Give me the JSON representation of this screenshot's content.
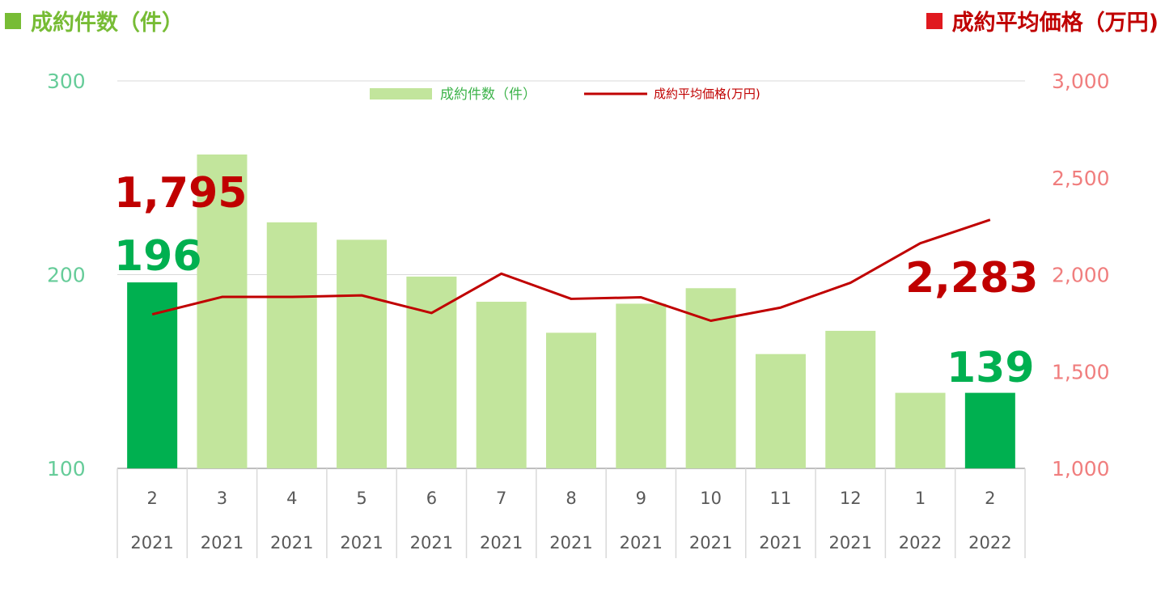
{
  "header": {
    "left_title": "成約件数（件）",
    "right_title": "成約平均価格（万円)"
  },
  "legend": {
    "bar_label": "成約件数（件）",
    "line_label": "成約平均価格(万円)"
  },
  "colors": {
    "bar_light": "#C2E59C",
    "bar_highlight": "#00B050",
    "line": "#C00000",
    "left_axis": "#66CC99",
    "right_axis": "#F07E7E"
  },
  "chart_data": {
    "type": "bar",
    "categories": [
      {
        "month": "2",
        "year": "2021"
      },
      {
        "month": "3",
        "year": "2021"
      },
      {
        "month": "4",
        "year": "2021"
      },
      {
        "month": "5",
        "year": "2021"
      },
      {
        "month": "6",
        "year": "2021"
      },
      {
        "month": "7",
        "year": "2021"
      },
      {
        "month": "8",
        "year": "2021"
      },
      {
        "month": "9",
        "year": "2021"
      },
      {
        "month": "10",
        "year": "2021"
      },
      {
        "month": "11",
        "year": "2021"
      },
      {
        "month": "12",
        "year": "2021"
      },
      {
        "month": "1",
        "year": "2022"
      },
      {
        "month": "2",
        "year": "2022"
      }
    ],
    "series": [
      {
        "name": "成約件数（件）",
        "type": "bar",
        "axis": "left",
        "values": [
          196,
          262,
          227,
          218,
          199,
          186,
          170,
          185,
          193,
          159,
          171,
          139,
          139
        ],
        "highlight": [
          true,
          false,
          false,
          false,
          false,
          false,
          false,
          false,
          false,
          false,
          false,
          false,
          true
        ]
      },
      {
        "name": "成約平均価格(万円)",
        "type": "line",
        "axis": "right",
        "values": [
          1795,
          1885,
          1885,
          1893,
          1802,
          2005,
          1875,
          1883,
          1762,
          1830,
          1958,
          2162,
          2283
        ]
      }
    ],
    "left_axis": {
      "ylim": [
        100,
        300
      ],
      "ticks": [
        "100",
        "200",
        "300"
      ]
    },
    "right_axis": {
      "ylim": [
        1000,
        3000
      ],
      "ticks": [
        "1,000",
        "1,500",
        "2,000",
        "2,500",
        "3,000"
      ]
    },
    "data_labels": {
      "first_count": "196",
      "last_count": "139",
      "first_price": "1,795",
      "last_price": "2,283"
    },
    "legend_position": "top-center"
  }
}
